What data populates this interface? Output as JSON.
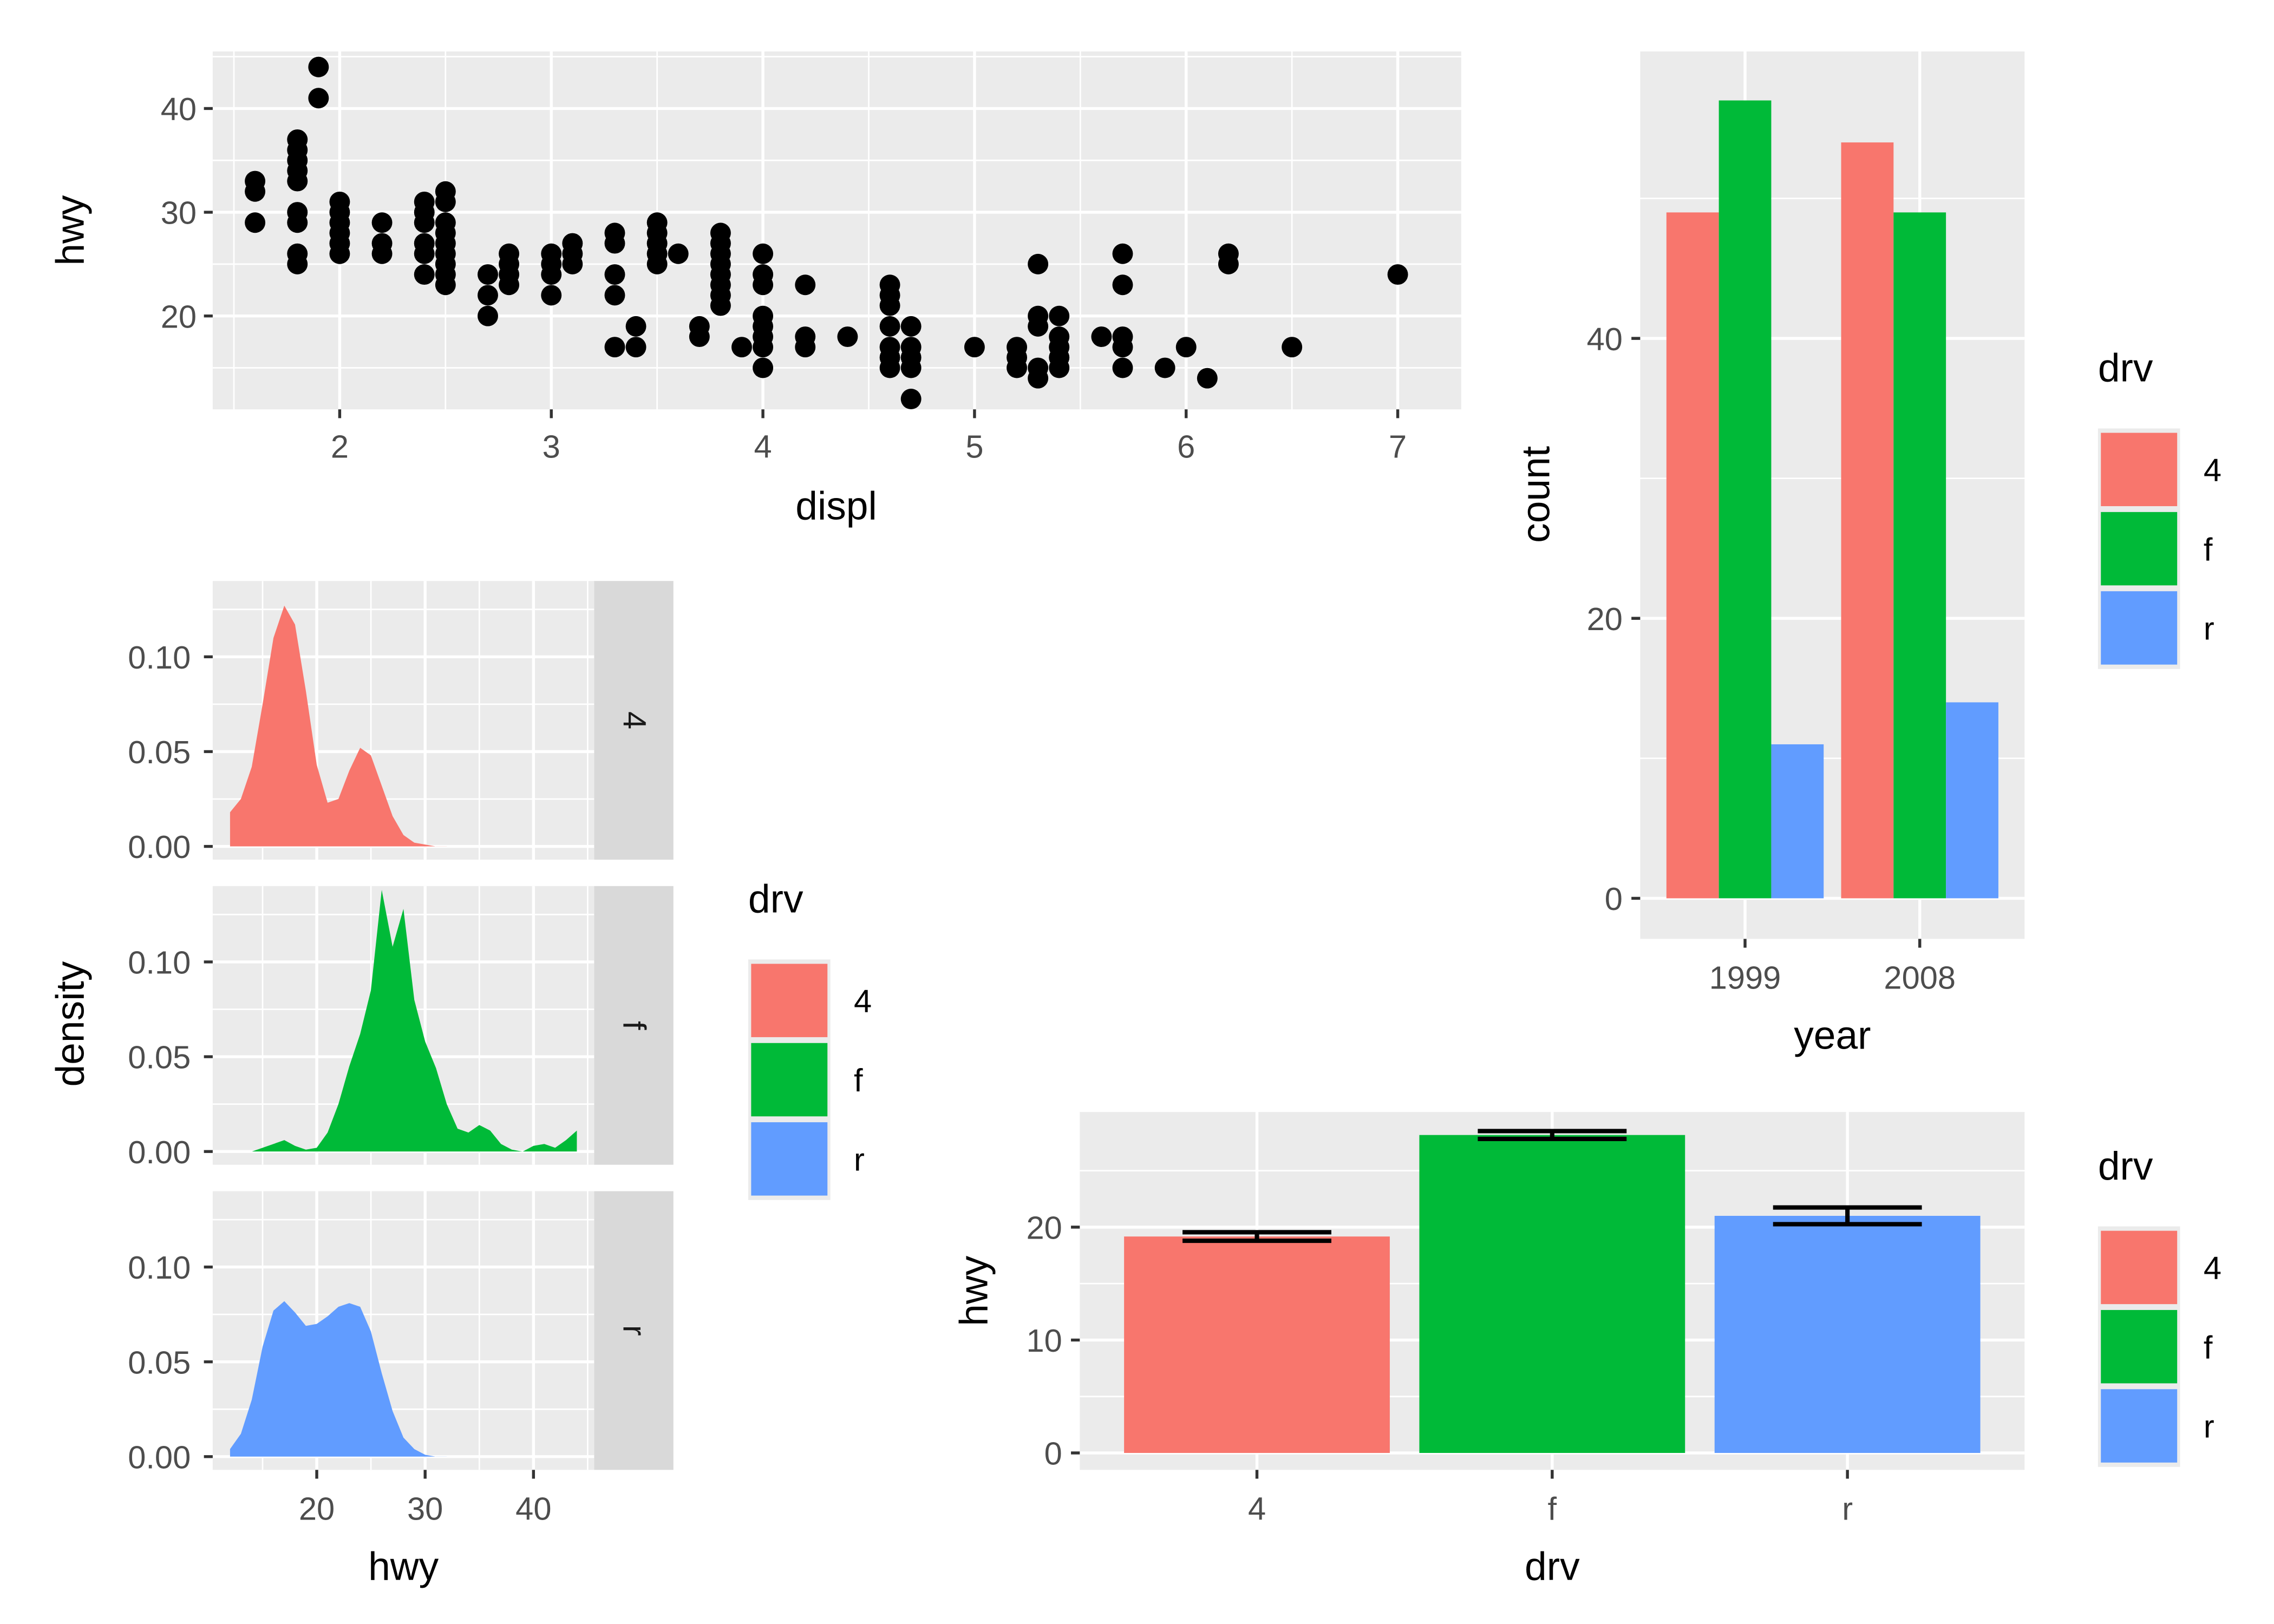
{
  "palette": {
    "4": "#F8766D",
    "f": "#00BA38",
    "r": "#619CFF",
    "panel": "#EBEBEB",
    "strip": "#D9D9D9",
    "grid": "#FFFFFF",
    "point": "#000000"
  },
  "chart_data": [
    {
      "type": "scatter",
      "xlabel": "displ",
      "ylabel": "hwy",
      "xlim": [
        1.4,
        7.3
      ],
      "ylim": [
        11,
        45.5
      ],
      "xticks": [
        "2",
        "3",
        "4",
        "5",
        "6",
        "7"
      ],
      "yticks": [
        "20",
        "30",
        "40"
      ],
      "grid": true,
      "points": [
        [
          1.6,
          33
        ],
        [
          1.6,
          32
        ],
        [
          1.6,
          29
        ],
        [
          1.8,
          37
        ],
        [
          1.8,
          36
        ],
        [
          1.8,
          35
        ],
        [
          1.8,
          34
        ],
        [
          1.8,
          33
        ],
        [
          1.8,
          30
        ],
        [
          1.8,
          29
        ],
        [
          1.8,
          26
        ],
        [
          1.8,
          25
        ],
        [
          1.9,
          44
        ],
        [
          1.9,
          41
        ],
        [
          2.0,
          31
        ],
        [
          2.0,
          30
        ],
        [
          2.0,
          29
        ],
        [
          2.0,
          28
        ],
        [
          2.0,
          27
        ],
        [
          2.0,
          26
        ],
        [
          2.2,
          29
        ],
        [
          2.2,
          27
        ],
        [
          2.2,
          26
        ],
        [
          2.4,
          31
        ],
        [
          2.4,
          30
        ],
        [
          2.4,
          29
        ],
        [
          2.4,
          27
        ],
        [
          2.4,
          26
        ],
        [
          2.4,
          24
        ],
        [
          2.5,
          32
        ],
        [
          2.5,
          31
        ],
        [
          2.5,
          29
        ],
        [
          2.5,
          28
        ],
        [
          2.5,
          27
        ],
        [
          2.5,
          26
        ],
        [
          2.5,
          25
        ],
        [
          2.5,
          24
        ],
        [
          2.5,
          23
        ],
        [
          2.7,
          24
        ],
        [
          2.7,
          22
        ],
        [
          2.7,
          20
        ],
        [
          2.8,
          26
        ],
        [
          2.8,
          25
        ],
        [
          2.8,
          24
        ],
        [
          2.8,
          23
        ],
        [
          3.0,
          26
        ],
        [
          3.0,
          25
        ],
        [
          3.0,
          24
        ],
        [
          3.0,
          22
        ],
        [
          3.1,
          27
        ],
        [
          3.1,
          26
        ],
        [
          3.1,
          25
        ],
        [
          3.3,
          28
        ],
        [
          3.3,
          27
        ],
        [
          3.3,
          24
        ],
        [
          3.3,
          22
        ],
        [
          3.3,
          17
        ],
        [
          3.4,
          19
        ],
        [
          3.4,
          17
        ],
        [
          3.5,
          29
        ],
        [
          3.5,
          28
        ],
        [
          3.5,
          27
        ],
        [
          3.5,
          26
        ],
        [
          3.5,
          25
        ],
        [
          3.6,
          26
        ],
        [
          3.7,
          19
        ],
        [
          3.7,
          18
        ],
        [
          3.8,
          28
        ],
        [
          3.8,
          27
        ],
        [
          3.8,
          26
        ],
        [
          3.8,
          25
        ],
        [
          3.8,
          24
        ],
        [
          3.8,
          23
        ],
        [
          3.8,
          22
        ],
        [
          3.8,
          21
        ],
        [
          3.9,
          17
        ],
        [
          4.0,
          26
        ],
        [
          4.0,
          24
        ],
        [
          4.0,
          23
        ],
        [
          4.0,
          20
        ],
        [
          4.0,
          19
        ],
        [
          4.0,
          18
        ],
        [
          4.0,
          17
        ],
        [
          4.0,
          15
        ],
        [
          4.2,
          23
        ],
        [
          4.2,
          18
        ],
        [
          4.2,
          17
        ],
        [
          4.4,
          18
        ],
        [
          4.6,
          23
        ],
        [
          4.6,
          22
        ],
        [
          4.6,
          21
        ],
        [
          4.6,
          19
        ],
        [
          4.6,
          17
        ],
        [
          4.6,
          16
        ],
        [
          4.6,
          15
        ],
        [
          4.7,
          19
        ],
        [
          4.7,
          17
        ],
        [
          4.7,
          16
        ],
        [
          4.7,
          15
        ],
        [
          4.7,
          12
        ],
        [
          5.0,
          17
        ],
        [
          5.2,
          17
        ],
        [
          5.2,
          16
        ],
        [
          5.2,
          15
        ],
        [
          5.3,
          25
        ],
        [
          5.3,
          20
        ],
        [
          5.3,
          19
        ],
        [
          5.3,
          15
        ],
        [
          5.3,
          14
        ],
        [
          5.4,
          20
        ],
        [
          5.4,
          18
        ],
        [
          5.4,
          17
        ],
        [
          5.4,
          16
        ],
        [
          5.4,
          15
        ],
        [
          5.6,
          18
        ],
        [
          5.7,
          26
        ],
        [
          5.7,
          23
        ],
        [
          5.7,
          18
        ],
        [
          5.7,
          17
        ],
        [
          5.7,
          15
        ],
        [
          5.9,
          15
        ],
        [
          6.0,
          17
        ],
        [
          6.1,
          14
        ],
        [
          6.2,
          26
        ],
        [
          6.2,
          25
        ],
        [
          6.5,
          17
        ],
        [
          7.0,
          24
        ]
      ]
    },
    {
      "type": "area",
      "subtype": "density-faceted",
      "xlabel": "hwy",
      "ylabel": "density",
      "xlim": [
        10.4,
        45.6
      ],
      "ylim": [
        -0.007,
        0.14
      ],
      "xticks": [
        "20",
        "30",
        "40"
      ],
      "yticks": [
        "0.00",
        "0.05",
        "0.10"
      ],
      "legend": {
        "title": "drv",
        "position": "right",
        "entries": [
          "4",
          "f",
          "r"
        ]
      },
      "facets": [
        {
          "label": "4",
          "x": [
            12,
            13,
            14,
            15,
            16,
            17,
            18,
            19,
            20,
            21,
            22,
            23,
            24,
            25,
            26,
            27,
            28,
            29,
            30,
            31,
            32
          ],
          "y": [
            0.018,
            0.025,
            0.042,
            0.075,
            0.11,
            0.127,
            0.117,
            0.082,
            0.043,
            0.023,
            0.025,
            0.04,
            0.052,
            0.048,
            0.032,
            0.016,
            0.006,
            0.002,
            0.001,
            0.0,
            0.0
          ]
        },
        {
          "label": "f",
          "x": [
            14,
            15,
            16,
            17,
            18,
            19,
            20,
            21,
            22,
            23,
            24,
            25,
            26,
            27,
            28,
            29,
            30,
            31,
            32,
            33,
            34,
            35,
            36,
            37,
            38,
            39,
            40,
            41,
            42,
            43,
            44
          ],
          "y": [
            0.0,
            0.002,
            0.004,
            0.006,
            0.003,
            0.001,
            0.002,
            0.01,
            0.025,
            0.045,
            0.062,
            0.085,
            0.138,
            0.108,
            0.128,
            0.08,
            0.058,
            0.044,
            0.025,
            0.012,
            0.01,
            0.014,
            0.011,
            0.004,
            0.001,
            0.0,
            0.003,
            0.004,
            0.002,
            0.006,
            0.011
          ]
        },
        {
          "label": "r",
          "x": [
            12,
            13,
            14,
            15,
            16,
            17,
            18,
            19,
            20,
            21,
            22,
            23,
            24,
            25,
            26,
            27,
            28,
            29,
            30,
            31,
            32
          ],
          "y": [
            0.004,
            0.012,
            0.03,
            0.058,
            0.077,
            0.082,
            0.076,
            0.069,
            0.07,
            0.074,
            0.079,
            0.081,
            0.079,
            0.066,
            0.044,
            0.024,
            0.01,
            0.004,
            0.001,
            0.0,
            0.0
          ]
        }
      ]
    },
    {
      "type": "bar",
      "subtype": "dodged",
      "xlabel": "year",
      "ylabel": "count",
      "categories": [
        "1999",
        "2008"
      ],
      "ylim": [
        -2.9,
        60.5
      ],
      "yticks": [
        "0",
        "20",
        "40"
      ],
      "legend": {
        "title": "drv",
        "position": "right",
        "entries": [
          "4",
          "f",
          "r"
        ]
      },
      "series": [
        {
          "name": "4",
          "values": [
            49,
            54
          ]
        },
        {
          "name": "f",
          "values": [
            57,
            49
          ]
        },
        {
          "name": "r",
          "values": [
            11,
            14
          ]
        }
      ]
    },
    {
      "type": "bar",
      "subtype": "mean-with-errorbars",
      "xlabel": "drv",
      "ylabel": "hwy",
      "categories": [
        "4",
        "f",
        "r"
      ],
      "values": [
        19.17,
        28.16,
        21.0
      ],
      "error_low": [
        18.79,
        27.81,
        20.26
      ],
      "error_high": [
        19.55,
        28.51,
        21.74
      ],
      "ylim": [
        -1.5,
        30.2
      ],
      "yticks": [
        "0",
        "10",
        "20"
      ],
      "legend": {
        "title": "drv",
        "position": "right",
        "entries": [
          "4",
          "f",
          "r"
        ]
      }
    }
  ]
}
